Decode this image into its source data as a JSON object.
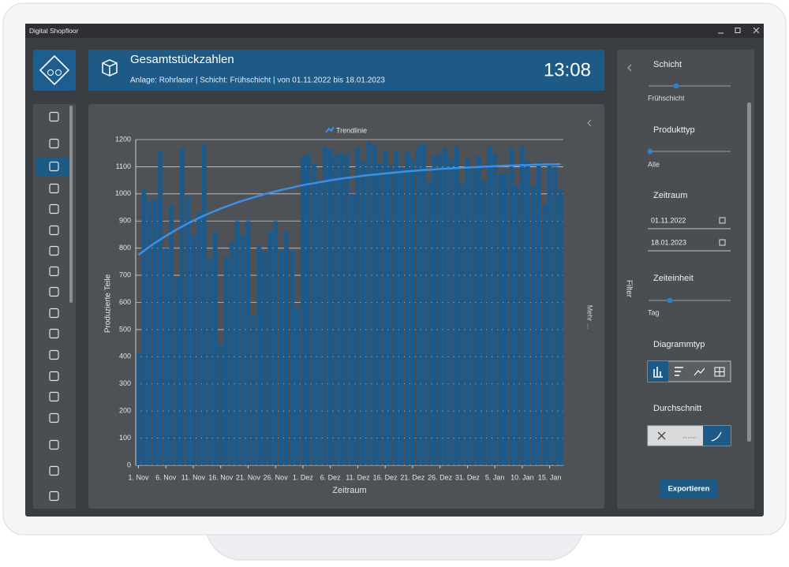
{
  "window": {
    "title": "Digital Shopfloor"
  },
  "header": {
    "title": "Gesamtstückzahlen",
    "subtitle": "Anlage: Rohrlaser | Schicht: Frühschicht | von 01.11.2022 bis 18.01.2023",
    "time": "13:08"
  },
  "chart_data": {
    "type": "bar",
    "x_label": "Zeitraum",
    "y_label": "Produzierte Teile",
    "more": "Mehr ...",
    "categories": [
      "1. Nov",
      null,
      null,
      null,
      null,
      "6. Nov",
      null,
      null,
      null,
      null,
      "11. Nov",
      null,
      null,
      null,
      null,
      "16. Nov",
      null,
      null,
      null,
      null,
      "21. Nov",
      null,
      null,
      null,
      null,
      "26. Nov",
      null,
      null,
      null,
      null,
      "1. Dez",
      null,
      null,
      null,
      null,
      "6. Dez",
      null,
      null,
      null,
      null,
      "11. Dez",
      null,
      null,
      null,
      null,
      "16. Dez",
      null,
      null,
      null,
      null,
      "21. Dez",
      null,
      null,
      null,
      null,
      "26. Dez",
      null,
      null,
      null,
      null,
      "31. Dez",
      null,
      null,
      null,
      null,
      "5. Jan",
      null,
      null,
      null,
      null,
      "10. Jan",
      null,
      null,
      null,
      null,
      "15. Jan",
      null,
      null
    ],
    "series": [
      {
        "color": "#1c5a8c",
        "values": [
          410,
          1015,
          970,
          980,
          1160,
          800,
          960,
          690,
          1170,
          990,
          850,
          930,
          1180,
          760,
          860,
          450,
          770,
          820,
          900,
          850,
          900,
          550,
          810,
          785,
          860,
          900,
          790,
          860,
          790,
          580,
          1140,
          1145,
          1110,
          1050,
          1175,
          1165,
          1140,
          1150,
          1145,
          1000,
          1170,
          1120,
          1195,
          1180,
          1110,
          1160,
          1105,
          1160,
          1100,
          1155,
          1130,
          1175,
          1185,
          1050,
          1140,
          1150,
          1170,
          1130,
          1175,
          1040,
          1130,
          1100,
          1140,
          1050,
          1175,
          1150,
          1070,
          1080,
          1170,
          1030,
          1175,
          1120,
          1030,
          1120,
          960,
          1115,
          1100,
          1015
        ]
      },
      {
        "name": "Trendlinie",
        "type": "line",
        "color": "#3d8fe6",
        "values": [
          775,
          790,
          805,
          819,
          832,
          845,
          857,
          869,
          880,
          891,
          901,
          911,
          920,
          929,
          937,
          946,
          953,
          961,
          968,
          975,
          981,
          987,
          993,
          999,
          1004,
          1009,
          1014,
          1019,
          1023,
          1028,
          1032,
          1036,
          1039,
          1043,
          1046,
          1050,
          1053,
          1056,
          1059,
          1061,
          1064,
          1067,
          1069,
          1071,
          1073,
          1075,
          1077,
          1079,
          1081,
          1083,
          1084,
          1086,
          1088,
          1089,
          1090,
          1092,
          1093,
          1094,
          1095,
          1096,
          1097,
          1098,
          1099,
          1100,
          1101,
          1102,
          1103,
          1104,
          1104,
          1105,
          1106,
          1106,
          1107,
          1108,
          1108,
          1109,
          1109,
          1110
        ]
      }
    ],
    "ylim": [
      0,
      1200
    ],
    "yticks": [
      0,
      100,
      200,
      300,
      400,
      500,
      600,
      700,
      800,
      900,
      1000,
      1100,
      1200
    ],
    "grid": true
  },
  "filter": {
    "title": "Filter",
    "shift": {
      "label": "Schicht",
      "value": "Frühschicht"
    },
    "product": {
      "label": "Produkttyp",
      "value": "Alle"
    },
    "period": {
      "label": "Zeitraum",
      "from": "01.11.2022",
      "to": "18.01.2023"
    },
    "unit": {
      "label": "Zeiteinheit",
      "value": "Tag"
    },
    "chart_type": {
      "label": "Diagrammtyp"
    },
    "average": {
      "label": "Durchschnitt"
    },
    "export": "Exportieren"
  }
}
